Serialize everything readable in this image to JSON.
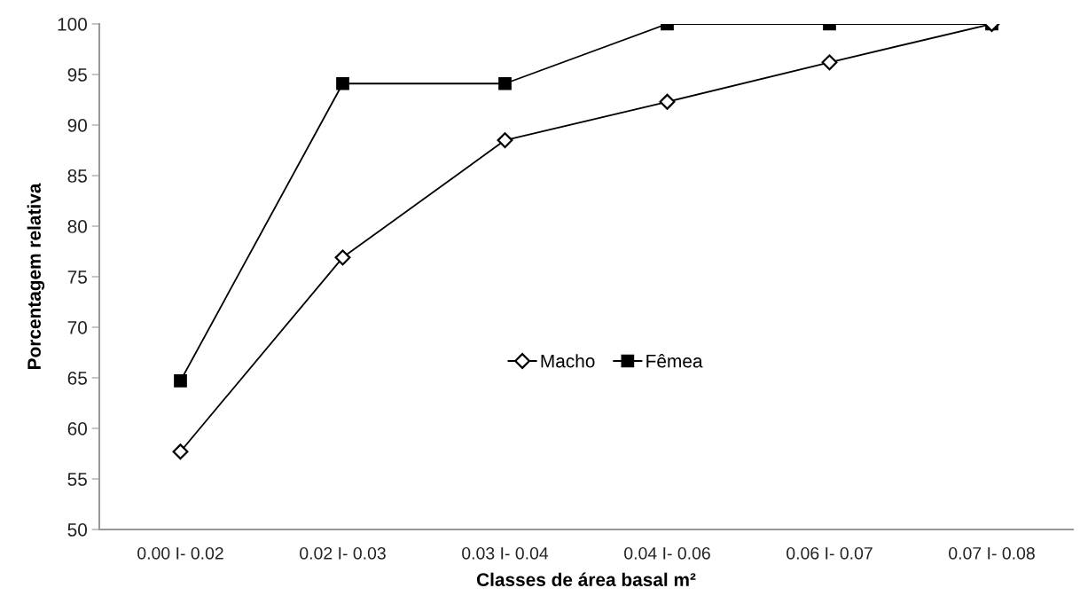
{
  "chart_data": {
    "type": "line",
    "xlabel": "Classes de área basal m²",
    "ylabel": "Porcentagem relativa",
    "categories": [
      "0.00 I- 0.02",
      "0.02 I- 0.03",
      "0.03 I- 0.04",
      "0.04 I- 0.06",
      "0.06 I- 0.07",
      "0.07 I- 0.08"
    ],
    "series": [
      {
        "name": "Macho",
        "color": "#000000",
        "marker": "diamond",
        "values": [
          57.7,
          76.9,
          88.5,
          92.3,
          96.2,
          100
        ]
      },
      {
        "name": "Fêmea",
        "color": "#000000",
        "marker": "square",
        "values": [
          64.7,
          94.1,
          94.1,
          100,
          100,
          100
        ]
      }
    ],
    "ylim": [
      50,
      100
    ],
    "yticks": [
      50,
      55,
      60,
      65,
      70,
      75,
      80,
      85,
      90,
      95,
      100
    ],
    "grid": false,
    "legend": "center",
    "line_style": "solid"
  }
}
